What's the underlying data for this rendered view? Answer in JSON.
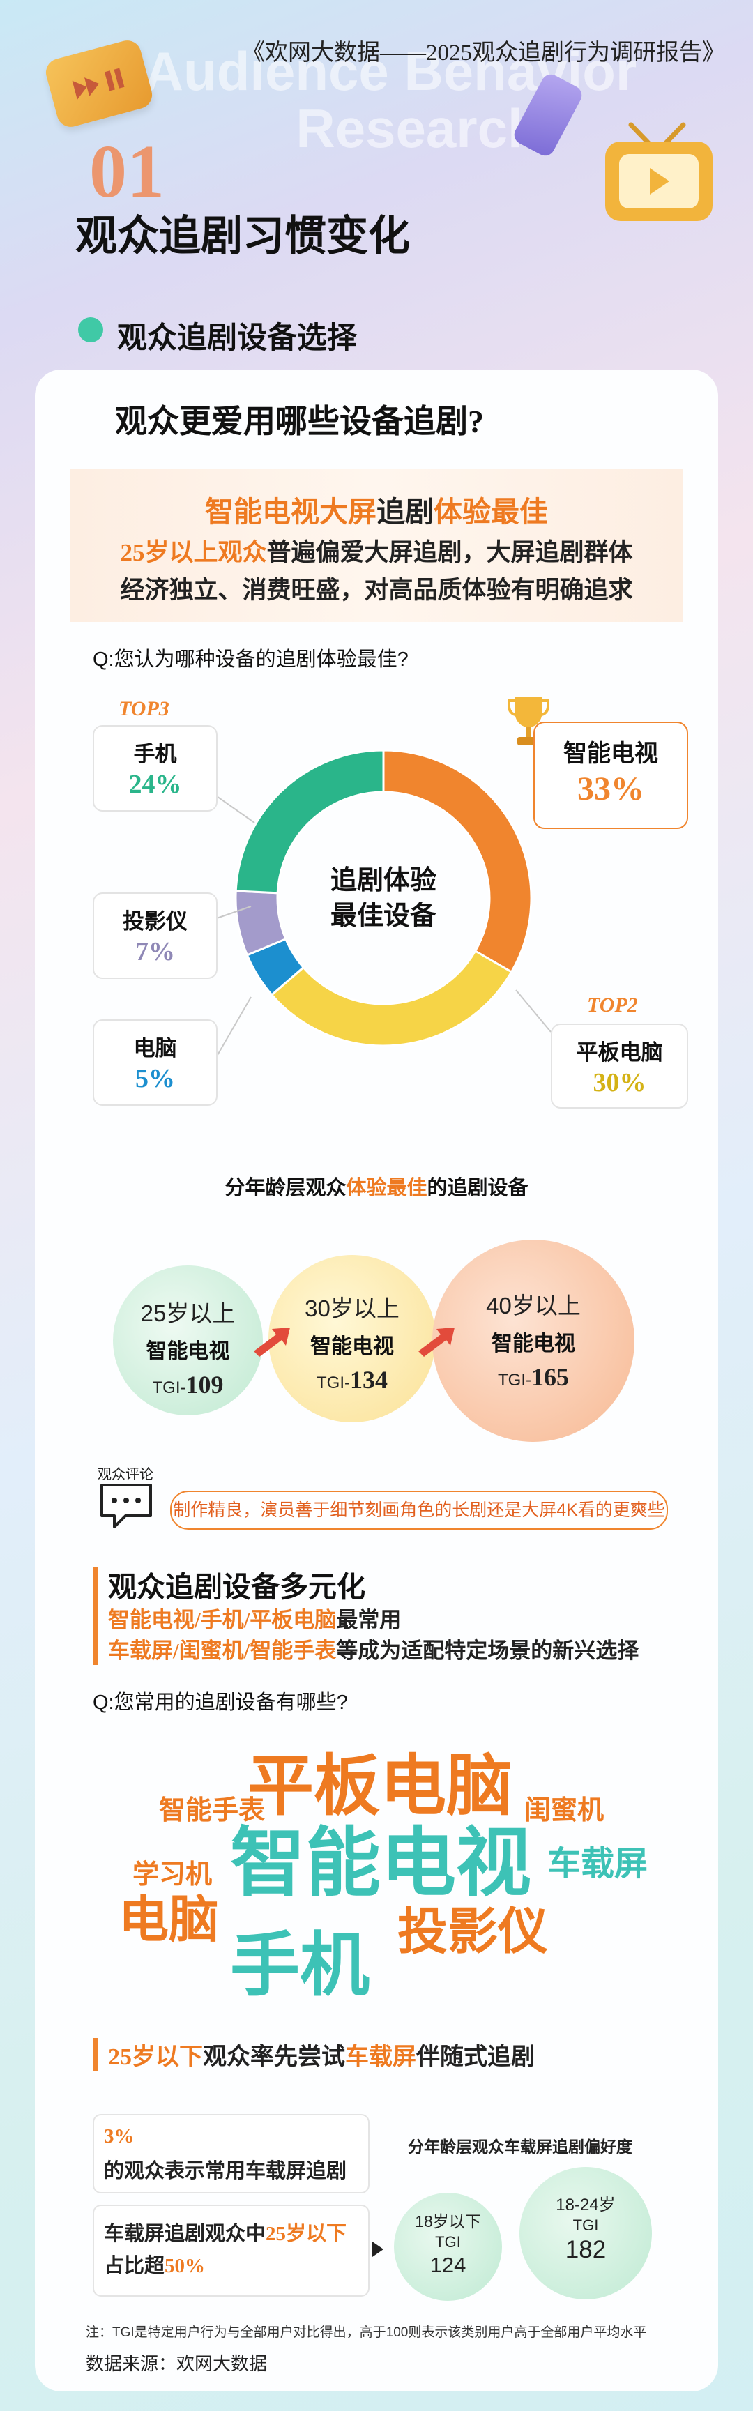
{
  "header": {
    "report_title": "《欢网大数据——2025观众追剧行为调研报告》",
    "bg_text_1": "Audience Behavior",
    "bg_text_2": "Research",
    "section_number": "01",
    "section_title": "观众追剧习惯变化"
  },
  "subsection": {
    "title": "观众追剧设备选择"
  },
  "card": {
    "question_heading": "观众更爱用哪些设备追剧?",
    "highlight": {
      "title_part1": "智能电视大屏",
      "title_part2": "追剧",
      "title_part3": "体验最佳",
      "line1_part1": "25岁以上观众",
      "line1_part2": "普遍偏爱大屏追剧，大屏追剧群体",
      "line2": "经济独立、消费旺盛，对高品质体验有明确追求"
    },
    "q1": "Q:您认为哪种设备的追剧体验最佳?",
    "donut_center_line1": "追剧体验",
    "donut_center_line2": "最佳设备"
  },
  "chart_data": {
    "type": "pie",
    "title": "",
    "categories": [
      "智能电视",
      "平板电脑",
      "电脑",
      "投影仪",
      "手机"
    ],
    "values": [
      33,
      30,
      5,
      7,
      24
    ],
    "colors": [
      "#f0852e",
      "#f6d447",
      "#1c8fcf",
      "#a39bcb",
      "#2ab58a"
    ],
    "labels": [
      "33%",
      "30%",
      "5%",
      "7%",
      "24%"
    ],
    "ranks": {
      "手机": "TOP3",
      "平板电脑": "TOP2"
    }
  },
  "age_section": {
    "title_part1": "分年龄层观众",
    "title_part2": "体验最佳",
    "title_part3": "的追剧设备",
    "bubbles": [
      {
        "age": "25岁以上",
        "device": "智能电视",
        "tgi_prefix": "TGI-",
        "tgi": "109"
      },
      {
        "age": "30岁以上",
        "device": "智能电视",
        "tgi_prefix": "TGI-",
        "tgi": "134"
      },
      {
        "age": "40岁以上",
        "device": "智能电视",
        "tgi_prefix": "TGI-",
        "tgi": "165"
      }
    ]
  },
  "comment": {
    "label": "观众评论",
    "text": "制作精良，演员善于细节刻画角色的长剧还是大屏4K看的更爽些"
  },
  "diverse": {
    "title": "观众追剧设备多元化",
    "line1_part1": "智能电视/手机/平板电脑",
    "line1_part2": "最常用",
    "line2_part1": "车载屏/闺蜜机/智能手表",
    "line2_part2": "等成为适配特定场景的新兴选择",
    "q2": "Q:您常用的追剧设备有哪些?"
  },
  "wordcloud": [
    "平板电脑",
    "智能手表",
    "闺蜜机",
    "智能电视",
    "车载屏",
    "学习机",
    "电脑",
    "投影仪",
    "手机"
  ],
  "car": {
    "title_part1": "25岁以下",
    "title_part2": "观众率先尝试",
    "title_part3": "车载屏",
    "title_part4": "伴随式追剧",
    "box1_pct": "3%",
    "box1_text": "的观众表示常用车载屏追剧",
    "box2_part1": "车载屏追剧观众中",
    "box2_part2": "25岁以下",
    "box2_part3": "占比超",
    "box2_part4": "50%",
    "chart_title": "分年龄层观众车载屏追剧偏好度",
    "bubbles": [
      {
        "age": "18岁以下",
        "tgi_label": "TGI",
        "tgi": "124"
      },
      {
        "age": "18-24岁",
        "tgi_label": "TGI",
        "tgi": "182"
      }
    ]
  },
  "footer": {
    "note": "注：TGI是特定用户行为与全部用户对比得出，高于100则表示该类别用户高于全部用户平均水平",
    "source": "数据来源：欢网大数据"
  }
}
